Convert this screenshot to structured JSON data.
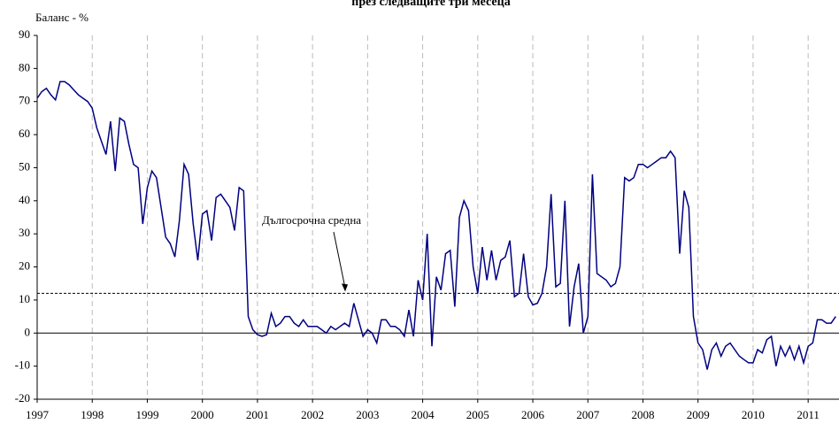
{
  "chart_data": {
    "type": "line",
    "title": "през следващите три месеца",
    "y_label": "Баланс - %",
    "x": [
      1997,
      1997.083,
      1997.167,
      1997.25,
      1997.333,
      1997.417,
      1997.5,
      1997.583,
      1997.667,
      1997.75,
      1997.833,
      1997.917,
      1998,
      1998.083,
      1998.167,
      1998.25,
      1998.333,
      1998.417,
      1998.5,
      1998.583,
      1998.667,
      1998.75,
      1998.833,
      1998.917,
      1999,
      1999.083,
      1999.167,
      1999.25,
      1999.333,
      1999.417,
      1999.5,
      1999.583,
      1999.667,
      1999.75,
      1999.833,
      1999.917,
      2000,
      2000.083,
      2000.167,
      2000.25,
      2000.333,
      2000.417,
      2000.5,
      2000.583,
      2000.667,
      2000.75,
      2000.833,
      2000.917,
      2001,
      2001.083,
      2001.167,
      2001.25,
      2001.333,
      2001.417,
      2001.5,
      2001.583,
      2001.667,
      2001.75,
      2001.833,
      2001.917,
      2002,
      2002.083,
      2002.167,
      2002.25,
      2002.333,
      2002.417,
      2002.5,
      2002.583,
      2002.667,
      2002.75,
      2002.833,
      2002.917,
      2003,
      2003.083,
      2003.167,
      2003.25,
      2003.333,
      2003.417,
      2003.5,
      2003.583,
      2003.667,
      2003.75,
      2003.833,
      2003.917,
      2004,
      2004.083,
      2004.167,
      2004.25,
      2004.333,
      2004.417,
      2004.5,
      2004.583,
      2004.667,
      2004.75,
      2004.833,
      2004.917,
      2005,
      2005.083,
      2005.167,
      2005.25,
      2005.333,
      2005.417,
      2005.5,
      2005.583,
      2005.667,
      2005.75,
      2005.833,
      2005.917,
      2006,
      2006.083,
      2006.167,
      2006.25,
      2006.333,
      2006.417,
      2006.5,
      2006.583,
      2006.667,
      2006.75,
      2006.833,
      2006.917,
      2007,
      2007.083,
      2007.167,
      2007.25,
      2007.333,
      2007.417,
      2007.5,
      2007.583,
      2007.667,
      2007.75,
      2007.833,
      2007.917,
      2008,
      2008.083,
      2008.167,
      2008.25,
      2008.333,
      2008.417,
      2008.5,
      2008.583,
      2008.667,
      2008.75,
      2008.833,
      2008.917,
      2009,
      2009.083,
      2009.167,
      2009.25,
      2009.333,
      2009.417,
      2009.5,
      2009.583,
      2009.667,
      2009.75,
      2009.833,
      2009.917,
      2010,
      2010.083,
      2010.167,
      2010.25,
      2010.333,
      2010.417,
      2010.5,
      2010.583,
      2010.667,
      2010.75,
      2010.833,
      2010.917,
      2011,
      2011.083,
      2011.167,
      2011.25,
      2011.333,
      2011.417,
      2011.5
    ],
    "series": [
      {
        "name": "Баланс",
        "color": "#000080",
        "values": [
          71,
          73,
          74,
          72,
          70.5,
          76,
          76,
          75,
          73.5,
          72,
          71,
          70,
          68,
          62,
          58,
          54,
          64,
          49,
          65,
          64,
          57,
          51,
          50,
          33,
          44,
          49,
          47,
          38,
          29,
          27,
          23,
          34,
          51,
          48,
          33,
          22,
          36,
          37,
          28,
          41,
          42,
          40,
          38,
          31,
          44,
          43,
          5,
          1,
          -0.5,
          -1,
          -0.5,
          6,
          2,
          3,
          5,
          5,
          3,
          2,
          4,
          2,
          2,
          2,
          1,
          0,
          2,
          1,
          2,
          3,
          2,
          9,
          4,
          -1,
          1,
          0,
          -3,
          4,
          4,
          2,
          2,
          1,
          -1,
          7,
          -1,
          16,
          10,
          30,
          -4,
          17,
          13,
          24,
          25,
          8,
          35,
          40,
          37,
          20,
          12,
          26,
          16,
          25,
          16,
          22,
          23,
          28,
          11,
          12,
          24,
          11,
          8.5,
          9,
          12,
          20,
          42,
          14,
          15,
          40,
          2,
          14,
          21,
          0,
          5,
          48,
          18,
          17,
          16,
          14,
          15,
          20,
          47,
          46,
          47,
          51,
          51,
          50,
          51,
          52,
          53,
          53,
          55,
          53,
          24,
          43,
          38,
          5,
          -3,
          -5,
          -11,
          -5,
          -3,
          -7,
          -4,
          -3,
          -5,
          -7,
          -8,
          -9,
          -9,
          -5,
          -6,
          -2,
          -1,
          -10,
          -4,
          -7,
          -4,
          -8,
          -4,
          -9,
          -4,
          -3,
          4,
          4,
          3,
          3,
          5
        ]
      }
    ],
    "reference_line": {
      "value": 12,
      "label": "Дългосрочна средна"
    },
    "xlim": [
      1997,
      2011.56
    ],
    "xticks": [
      1997,
      1998,
      1999,
      2000,
      2001,
      2002,
      2003,
      2004,
      2005,
      2006,
      2007,
      2008,
      2009,
      2010,
      2011
    ],
    "ylim": [
      -20,
      90
    ],
    "yticks": [
      -20,
      -10,
      0,
      10,
      20,
      30,
      40,
      50,
      60,
      70,
      80,
      90
    ],
    "grid": true
  }
}
